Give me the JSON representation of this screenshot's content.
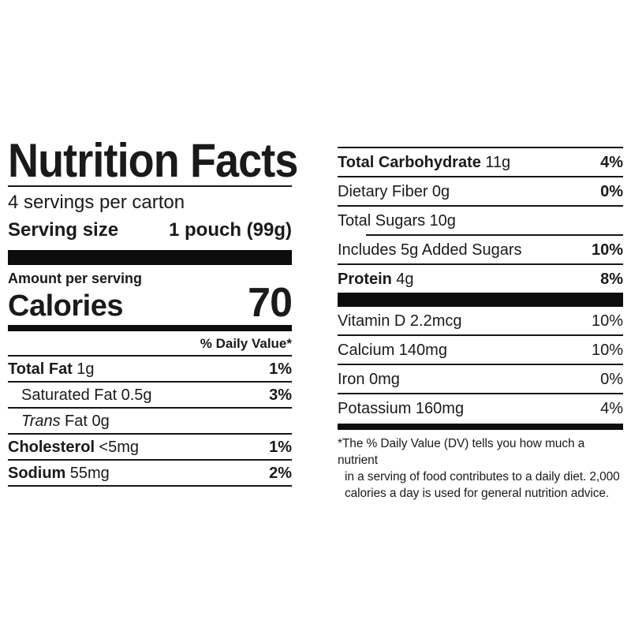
{
  "colors": {
    "background": "#ffffff",
    "text": "#1a1a1a",
    "rule": "#161616",
    "bar": "#0d0d0d"
  },
  "label": {
    "title": "Nutrition Facts",
    "servings_per_container": "4 servings per carton",
    "serving_size_label": "Serving size",
    "serving_size_value": "1 pouch (99g)",
    "amount_per_serving": "Amount per serving",
    "calories_label": "Calories",
    "calories_value": "70",
    "daily_value_header": "% Daily Value*",
    "left_rows": [
      {
        "name": "Total Fat",
        "amount": "1g",
        "dv": "1%"
      },
      {
        "name": "Saturated Fat",
        "amount": "0.5g",
        "dv": "3%"
      },
      {
        "name": "Trans",
        "amount": "Fat 0g",
        "dv": ""
      },
      {
        "name": "Cholesterol",
        "amount": "<5mg",
        "dv": "1%"
      },
      {
        "name": "Sodium",
        "amount": "55mg",
        "dv": "2%"
      }
    ],
    "right_rows": [
      {
        "name": "Total Carbohydrate",
        "amount": "11g",
        "dv": "4%"
      },
      {
        "name": "Dietary Fiber",
        "amount": "0g",
        "dv": "0%"
      },
      {
        "name": "Total Sugars",
        "amount": "10g",
        "dv": ""
      },
      {
        "name": "Includes 5g Added Sugars",
        "amount": "",
        "dv": "10%"
      },
      {
        "name": "Protein",
        "amount": "4g",
        "dv": "8%"
      }
    ],
    "vitamin_rows": [
      {
        "name": "Vitamin D 2.2mcg",
        "dv": "10%"
      },
      {
        "name": "Calcium 140mg",
        "dv": "10%"
      },
      {
        "name": "Iron 0mg",
        "dv": "0%"
      },
      {
        "name": "Potassium 160mg",
        "dv": "4%"
      }
    ],
    "footnote_lines": [
      "*The % Daily Value (DV) tells you how much a nutrient",
      "in a serving of food contributes to a daily diet. 2,000",
      "calories a day is used for general nutrition advice."
    ]
  }
}
